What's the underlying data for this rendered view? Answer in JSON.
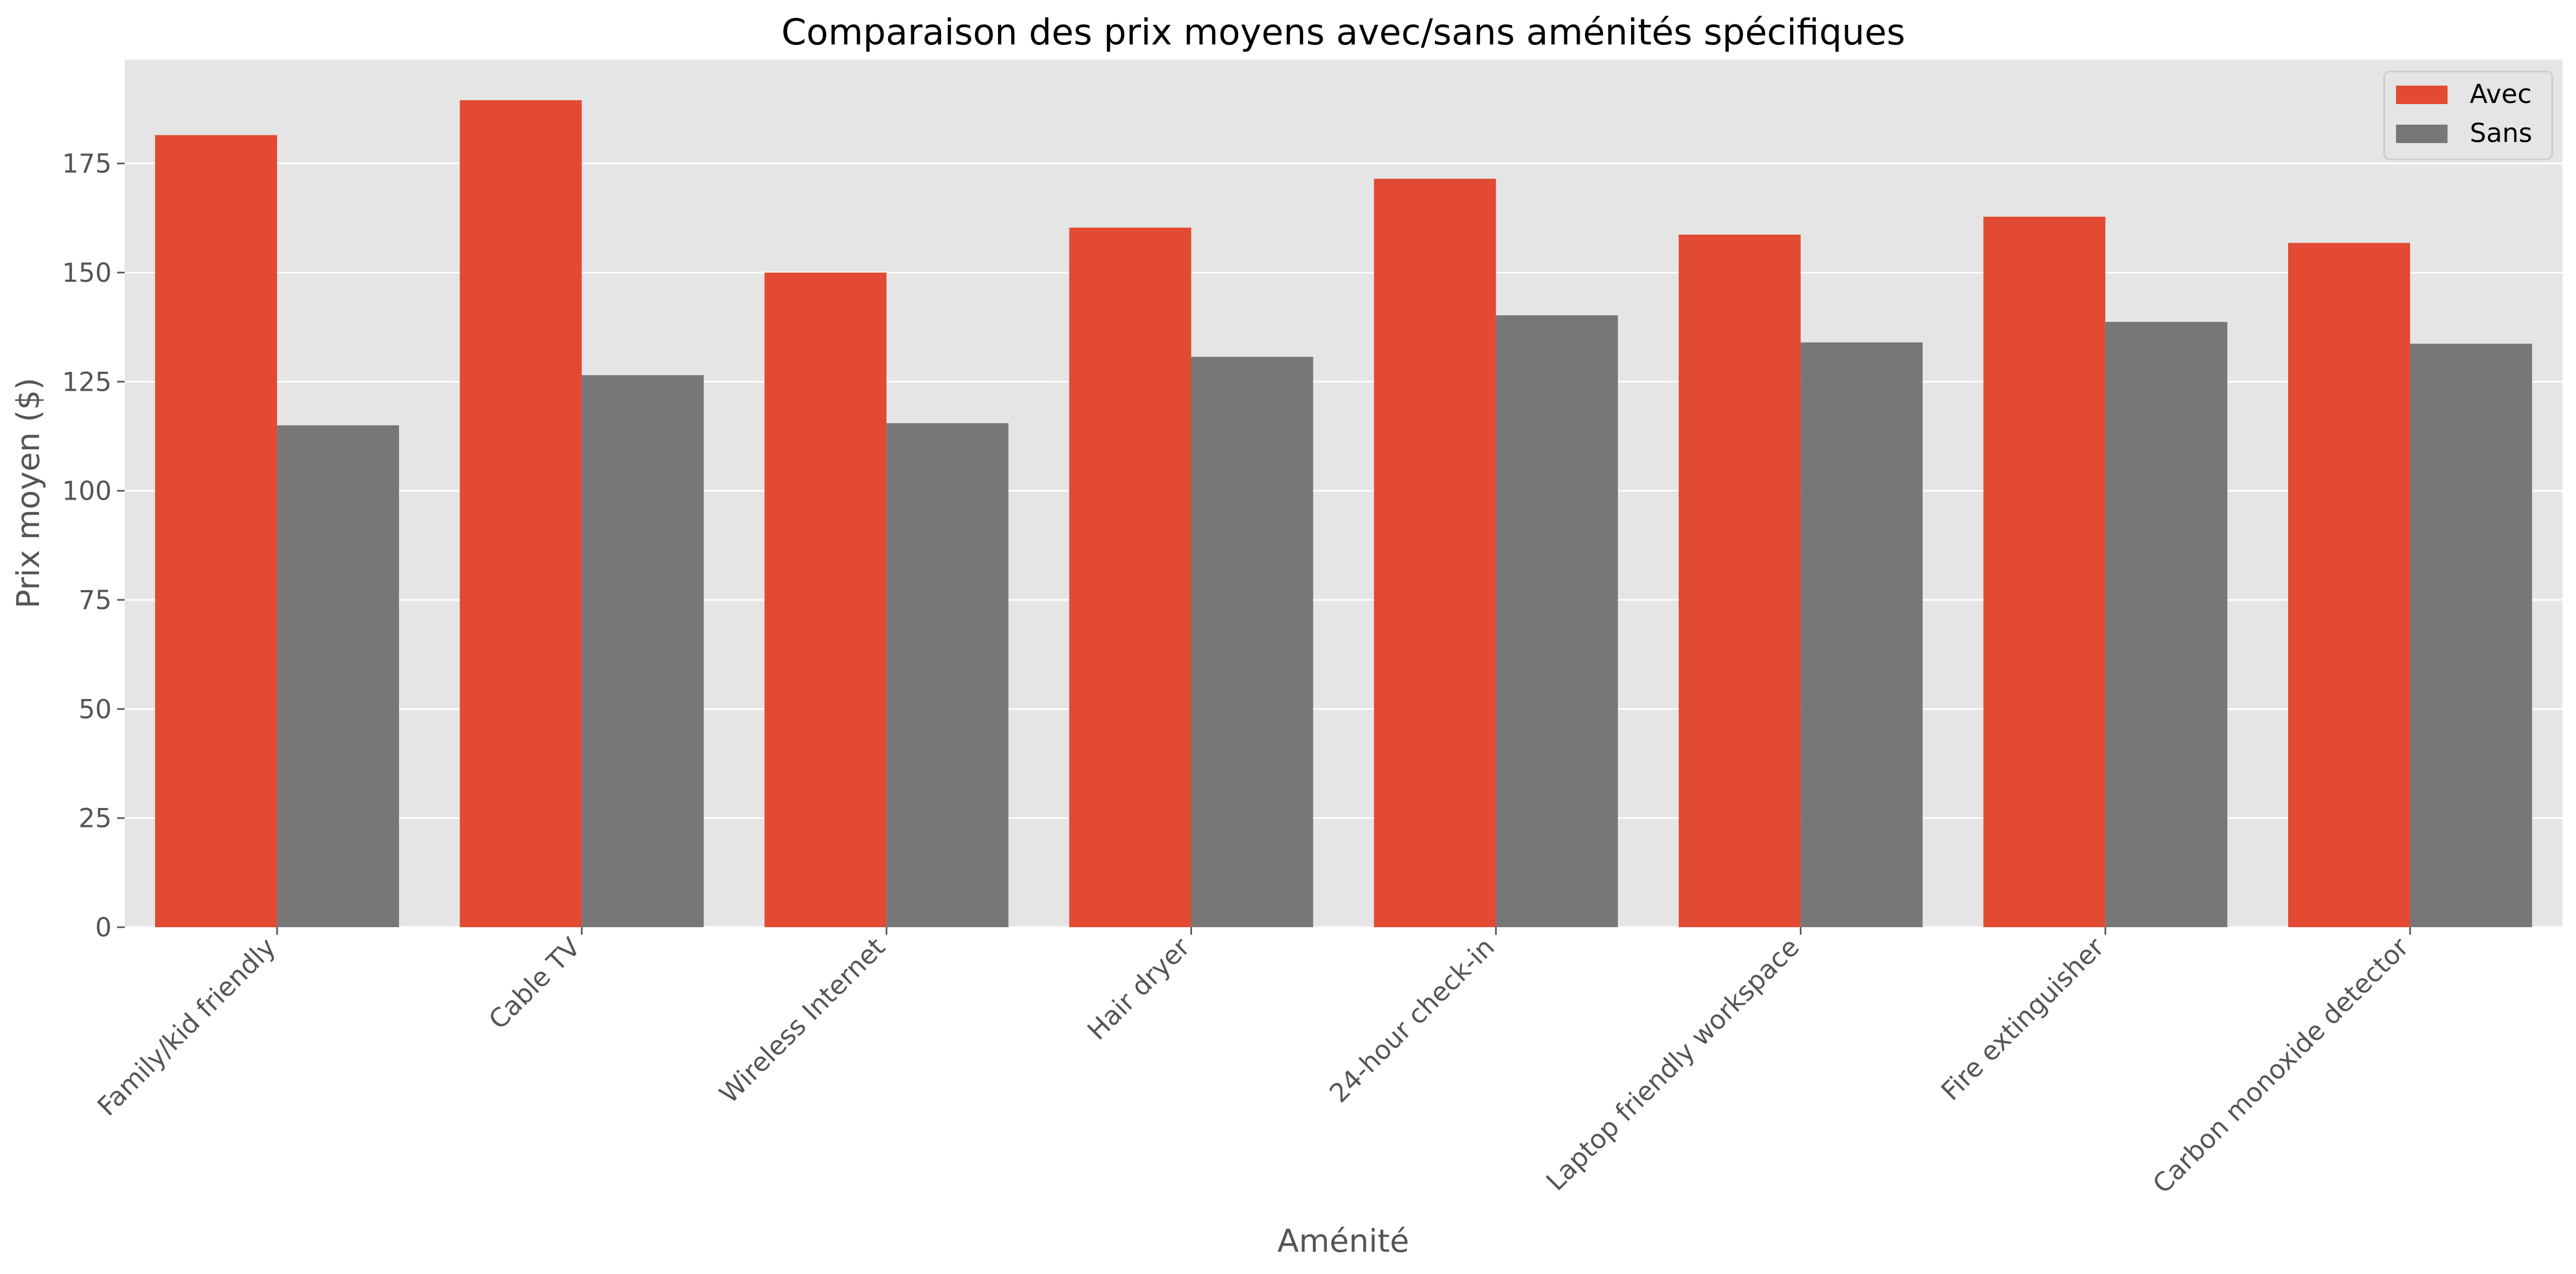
{
  "chart_data": {
    "type": "bar",
    "title": "Comparaison des prix moyens avec/sans aménités spécifiques",
    "xlabel": "Aménité",
    "ylabel": "Prix moyen ($)",
    "categories": [
      "Family/kid friendly",
      "Cable TV",
      "Wireless Internet",
      "Hair dryer",
      "24-hour check-in",
      "Laptop friendly workspace",
      "Fire extinguisher",
      "Carbon monoxide detector"
    ],
    "series": [
      {
        "name": "Avec",
        "color": "#E24A33",
        "values": [
          181.5,
          189.5,
          150,
          160.3,
          171.5,
          158.7,
          162.8,
          156.8
        ]
      },
      {
        "name": "Sans",
        "color": "#777777",
        "values": [
          115,
          126.5,
          115.5,
          130.7,
          140.2,
          134,
          138.7,
          133.7
        ]
      }
    ],
    "ylim": [
      0,
      198.8
    ],
    "yticks": [
      "0",
      "25",
      "50",
      "75",
      "100",
      "125",
      "150",
      "175"
    ],
    "grid": true,
    "legend_position": "top-right",
    "style": "ggplot"
  }
}
